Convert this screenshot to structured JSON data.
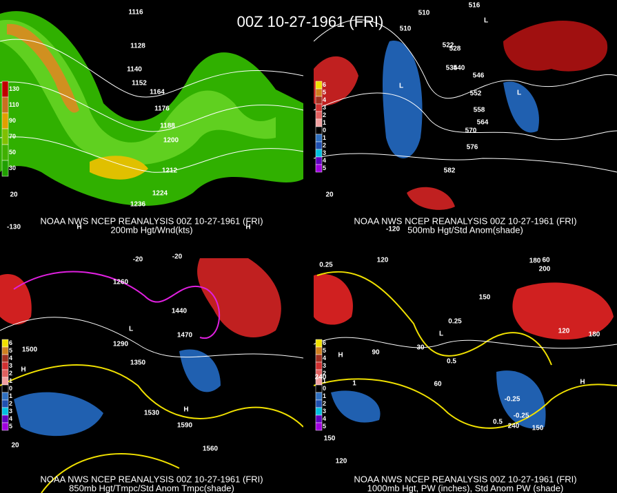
{
  "title": "00Z 10-27-1961 (FRI)",
  "panels": [
    {
      "caption_line1": "NOAA NWS NCEP REANALYSIS 00Z 10-27-1961 (FRI)",
      "caption_line2": "200mb Hgt/Wnd(kts)",
      "legend": [
        "130",
        "110",
        "90",
        "70",
        "50",
        "30"
      ],
      "contour_labels": [
        "1116",
        "1128",
        "1140",
        "1152",
        "1164",
        "1176",
        "1188",
        "1200",
        "1212",
        "1224",
        "1236",
        "20",
        "-130",
        "H",
        "H"
      ]
    },
    {
      "caption_line1": "NOAA NWS NCEP REANALYSIS 00Z 10-27-1961 (FRI)",
      "caption_line2": "500mb Hgt/Std Anom(shade)",
      "legend": [
        "6",
        "5",
        "4",
        "3",
        "2",
        "1",
        "0",
        "1",
        "2",
        "3",
        "4",
        "5"
      ],
      "contour_labels": [
        "516",
        "510",
        "510",
        "522",
        "528",
        "534",
        "540",
        "546",
        "552",
        "558",
        "564",
        "570",
        "576",
        "582",
        "20",
        "-120",
        "L",
        "L",
        "L"
      ]
    },
    {
      "caption_line1": "NOAA NWS NCEP REANALYSIS 00Z 10-27-1961 (FRI)",
      "caption_line2": "850mb Hgt/Tmpc/Std Anom Tmpc(shade)",
      "legend": [
        "6",
        "5",
        "4",
        "3",
        "2",
        "1",
        "0",
        "1",
        "2",
        "3",
        "4",
        "5"
      ],
      "contour_labels": [
        "1260",
        "1500",
        "1290",
        "1350",
        "1440",
        "1470",
        "1530",
        "1590",
        "1560",
        "-20",
        "-20",
        "20",
        "H",
        "H",
        "L"
      ]
    },
    {
      "caption_line1": "NOAA NWS NCEP REANALYSIS 00Z 10-27-1961 (FRI)",
      "caption_line2": "1000mb Hgt, PW (inches), Std Anom PW (shade)",
      "legend": [
        "6",
        "5",
        "4",
        "3",
        "2",
        "1",
        "0",
        "1",
        "2",
        "3",
        "4",
        "5"
      ],
      "contour_labels": [
        "120",
        "180",
        "200",
        "60",
        "150",
        "0.25",
        "0.25",
        "0.5",
        "90",
        "60",
        "30",
        "240",
        "120",
        "180",
        "-0.25",
        "-0.25",
        "0.5",
        "240",
        "150",
        "150",
        "120",
        "1",
        "H",
        "H",
        "L"
      ]
    }
  ]
}
